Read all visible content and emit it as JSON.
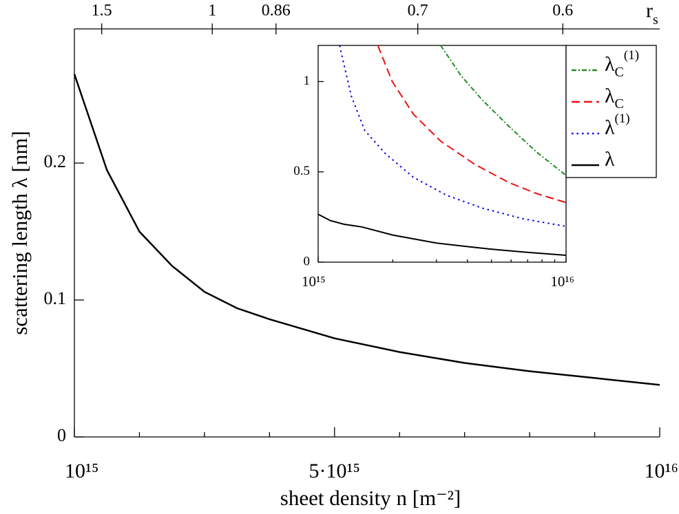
{
  "chart_data": [
    {
      "type": "line",
      "xlabel": "sheet density  n [m⁻²]",
      "ylabel": "scattering length λ [nm]",
      "xlim": [
        1000000000000000.0,
        1e+16
      ],
      "ylim": [
        0,
        0.298
      ],
      "xticks": [
        {
          "value": 1000000000000000.0,
          "label": "10¹⁵"
        },
        {
          "value": 5000000000000000.0,
          "label": "5·10¹⁵"
        },
        {
          "value": 1e+16,
          "label": "10¹⁶"
        }
      ],
      "xticks_minor": [
        2000000000000000.0,
        3000000000000000.0,
        4000000000000000.0,
        6000000000000000.0,
        7000000000000000.0,
        8000000000000000.0,
        9000000000000000.0
      ],
      "yticks": [
        0,
        0.1,
        0.2
      ],
      "x2label": "r",
      "x2label_sub": "s",
      "x2ticks": [
        {
          "value": 1420000000000000.0,
          "label": "1.5"
        },
        {
          "value": 3120000000000000.0,
          "label": "1"
        },
        {
          "value": 4100000000000000.0,
          "label": "0.86"
        },
        {
          "value": 6280000000000000.0,
          "label": "0.7"
        },
        {
          "value": 8510000000000000.0,
          "label": "0.6"
        }
      ],
      "series": [
        {
          "color": "#000000",
          "line_style": "solid",
          "x": [
            1000000000000000.0,
            1500000000000000.0,
            2000000000000000.0,
            2500000000000000.0,
            3000000000000000.0,
            3500000000000000.0,
            4000000000000000.0,
            5000000000000000.0,
            6000000000000000.0,
            7000000000000000.0,
            8000000000000000.0,
            9000000000000000.0,
            1e+16
          ],
          "values": [
            0.265,
            0.195,
            0.15,
            0.125,
            0.106,
            0.094,
            0.086,
            0.072,
            0.062,
            0.054,
            0.048,
            0.043,
            0.038
          ]
        }
      ]
    },
    {
      "type": "line",
      "xscale": "log",
      "xlim": [
        1000000000000000.0,
        1e+16
      ],
      "ylim": [
        0,
        1.2
      ],
      "xticks": [
        {
          "value": 1000000000000000.0,
          "label": "10¹⁵"
        },
        {
          "value": 1e+16,
          "label": "10¹⁶"
        }
      ],
      "xticks_minor": [
        2000000000000000.0,
        3000000000000000.0,
        4000000000000000.0,
        5000000000000000.0,
        6000000000000000.0,
        7000000000000000.0,
        8000000000000000.0,
        9000000000000000.0
      ],
      "yticks": [
        0,
        0.5,
        1
      ],
      "legend": "outside-right",
      "series": [
        {
          "name": "λ",
          "sub": "C",
          "sup": "(1)",
          "color": "#228b22",
          "line_style": "dashdot",
          "x": [
            3120000000000000.0,
            3780000000000000.0,
            4580000000000000.0,
            5900000000000000.0,
            7600000000000000.0,
            1e+16
          ],
          "values": [
            1.2,
            1.03,
            0.9,
            0.75,
            0.61,
            0.48
          ]
        },
        {
          "name": "λ",
          "sub": "C",
          "color": "#ee1111",
          "line_style": "dashed",
          "x": [
            1740000000000000.0,
            1990000000000000.0,
            2420000000000000.0,
            3120000000000000.0,
            4300000000000000.0,
            5900000000000000.0,
            7600000000000000.0,
            1e+16
          ],
          "values": [
            1.2,
            1.0,
            0.82,
            0.67,
            0.54,
            0.44,
            0.38,
            0.33
          ]
        },
        {
          "name": "λ",
          "sup": "(1)",
          "color": "#0000ee",
          "line_style": "dotted",
          "x": [
            1220000000000000.0,
            1360000000000000.0,
            1540000000000000.0,
            1870000000000000.0,
            2420000000000000.0,
            3300000000000000.0,
            4580000000000000.0,
            6700000000000000.0,
            1e+16
          ],
          "values": [
            1.2,
            0.92,
            0.73,
            0.6,
            0.47,
            0.37,
            0.3,
            0.24,
            0.198
          ]
        },
        {
          "name": "λ",
          "color": "#000000",
          "line_style": "solid",
          "x": [
            1000000000000000.0,
            1120000000000000.0,
            1270000000000000.0,
            1500000000000000.0,
            2000000000000000.0,
            3000000000000000.0,
            4000000000000000.0,
            5000000000000000.0,
            7000000000000000.0,
            1e+16
          ],
          "values": [
            0.265,
            0.23,
            0.21,
            0.195,
            0.15,
            0.106,
            0.086,
            0.072,
            0.054,
            0.038
          ]
        }
      ]
    }
  ]
}
